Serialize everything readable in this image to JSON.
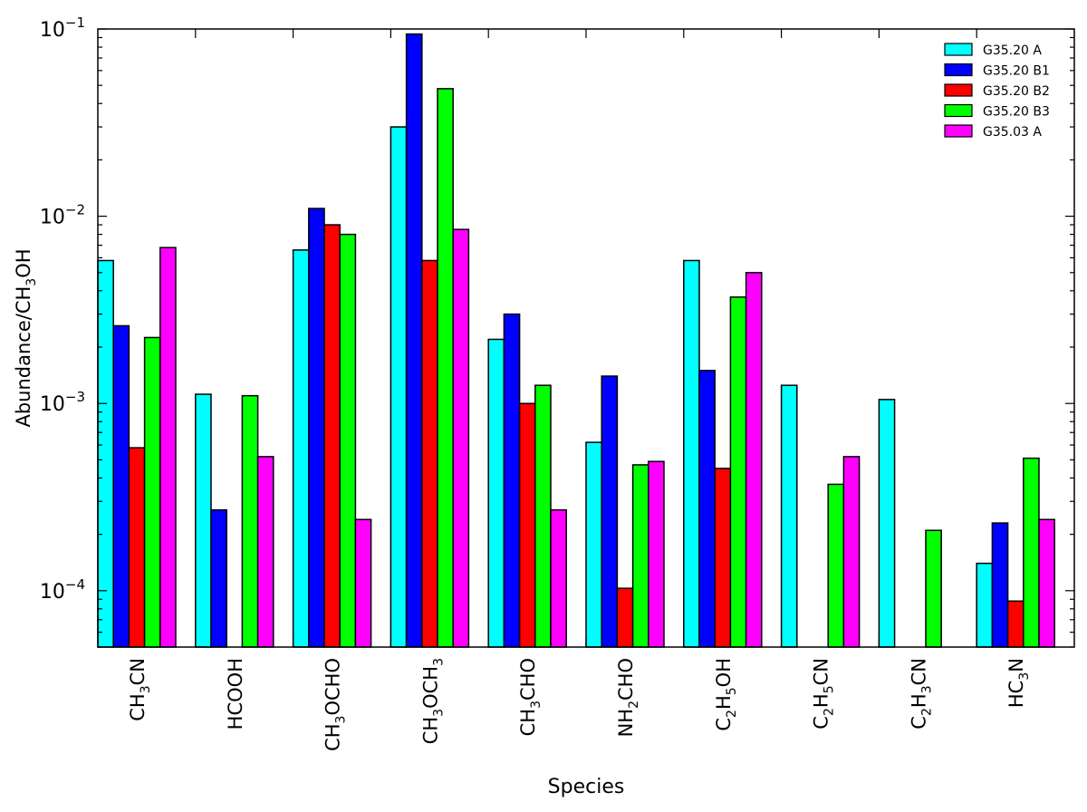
{
  "chart_data": {
    "type": "bar",
    "xlabel": "Species",
    "ylabel": "Abundance/CH₃OH",
    "yscale": "log",
    "ylim": [
      5e-05,
      0.1
    ],
    "grid": false,
    "legend_position": "top-right",
    "yticks": [
      {
        "value": 0.0001,
        "base": "10",
        "exp": "−4"
      },
      {
        "value": 0.001,
        "base": "10",
        "exp": "−3"
      },
      {
        "value": 0.01,
        "base": "10",
        "exp": "−2"
      },
      {
        "value": 0.1,
        "base": "10",
        "exp": "−1"
      }
    ],
    "categories": [
      {
        "label": "CH₃CN",
        "parts": [
          {
            "t": "CH"
          },
          {
            "t": "3",
            "sub": true
          },
          {
            "t": "CN"
          }
        ]
      },
      {
        "label": "HCOOH",
        "parts": [
          {
            "t": "HCOOH"
          }
        ]
      },
      {
        "label": "CH₃OCHO",
        "parts": [
          {
            "t": "CH"
          },
          {
            "t": "3",
            "sub": true
          },
          {
            "t": "OCHO"
          }
        ]
      },
      {
        "label": "CH₃OCH₃",
        "parts": [
          {
            "t": "CH"
          },
          {
            "t": "3",
            "sub": true
          },
          {
            "t": "OCH"
          },
          {
            "t": "3",
            "sub": true
          }
        ]
      },
      {
        "label": "CH₃CHO",
        "parts": [
          {
            "t": "CH"
          },
          {
            "t": "3",
            "sub": true
          },
          {
            "t": "CHO"
          }
        ]
      },
      {
        "label": "NH₂CHO",
        "parts": [
          {
            "t": "NH"
          },
          {
            "t": "2",
            "sub": true
          },
          {
            "t": "CHO"
          }
        ]
      },
      {
        "label": "C₂H₅OH",
        "parts": [
          {
            "t": "C"
          },
          {
            "t": "2",
            "sub": true
          },
          {
            "t": "H"
          },
          {
            "t": "5",
            "sub": true
          },
          {
            "t": "OH"
          }
        ]
      },
      {
        "label": "C₂H₅CN",
        "parts": [
          {
            "t": "C"
          },
          {
            "t": "2",
            "sub": true
          },
          {
            "t": "H"
          },
          {
            "t": "5",
            "sub": true
          },
          {
            "t": "CN"
          }
        ]
      },
      {
        "label": "C₂H₃CN",
        "parts": [
          {
            "t": "C"
          },
          {
            "t": "2",
            "sub": true
          },
          {
            "t": "H"
          },
          {
            "t": "3",
            "sub": true
          },
          {
            "t": "CN"
          }
        ]
      },
      {
        "label": "HC₃N",
        "parts": [
          {
            "t": "HC"
          },
          {
            "t": "3",
            "sub": true
          },
          {
            "t": "N"
          }
        ]
      }
    ],
    "series": [
      {
        "name": "G35.20 A",
        "color": "#00ffff",
        "values": [
          0.0058,
          0.00112,
          0.0066,
          0.03,
          0.0022,
          0.00062,
          0.0058,
          0.00125,
          0.00105,
          0.00014
        ]
      },
      {
        "name": "G35.20 B1",
        "color": "#0000ff",
        "values": [
          0.0026,
          0.00027,
          0.011,
          0.094,
          0.003,
          0.0014,
          0.0015,
          null,
          null,
          0.00023
        ]
      },
      {
        "name": "G35.20 B2",
        "color": "#ff0000",
        "values": [
          0.00058,
          null,
          0.009,
          0.0058,
          0.001,
          0.000103,
          0.00045,
          null,
          null,
          8.8e-05
        ]
      },
      {
        "name": "G35.20 B3",
        "color": "#00ff00",
        "values": [
          0.00225,
          0.0011,
          0.008,
          0.048,
          0.00125,
          0.00047,
          0.0037,
          0.00037,
          0.00021,
          0.00051
        ]
      },
      {
        "name": "G35.03 A",
        "color": "#ff00ff",
        "values": [
          0.0068,
          0.00052,
          0.00024,
          0.0085,
          0.00027,
          0.00049,
          0.005,
          0.00052,
          null,
          0.00024
        ]
      }
    ]
  }
}
